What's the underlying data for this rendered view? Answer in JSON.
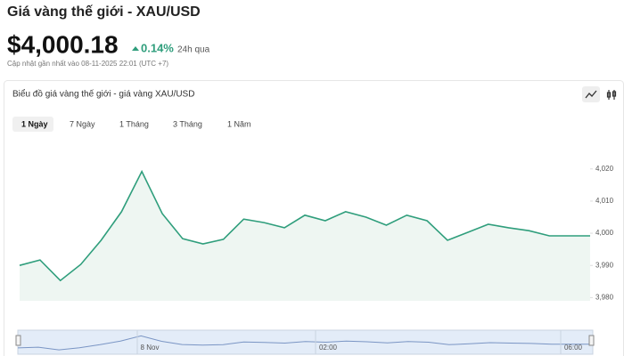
{
  "header": {
    "title": "Giá vàng thế giới - XAU/USD",
    "price": "$4,000.18",
    "change": "0.14%",
    "period": "24h qua",
    "updated": "Cập nhật gần nhất vào 08-11-2025 22:01 (UTC +7)"
  },
  "tabs": [
    "1 Ngày",
    "7 Ngày",
    "1 Tháng",
    "3 Tháng",
    "1 Năm"
  ],
  "navigator": {
    "labels": [
      "8 Nov",
      "02:00",
      "06:00"
    ]
  },
  "chart_data": {
    "type": "area",
    "title": "Biểu đồ giá vàng thế giới - giá vàng XAU/USD",
    "categories": [
      null,
      null,
      null,
      null,
      null,
      null,
      null,
      null,
      null,
      null,
      null,
      null,
      null,
      null,
      null,
      null,
      null,
      null,
      null,
      null,
      null,
      null,
      null,
      null,
      null,
      null,
      null,
      null,
      null
    ],
    "values": [
      3990,
      3991.7,
      3985.3,
      3990.3,
      3997.8,
      4006.7,
      4019.2,
      4006.1,
      3998.3,
      3996.7,
      3998.1,
      4004.4,
      4003.3,
      4001.7,
      4005.6,
      4003.9,
      4006.7,
      4005,
      4002.5,
      4005.6,
      4003.9,
      3997.8,
      4000.3,
      4002.8,
      4001.7,
      4000.8,
      3999.2,
      3999.2,
      3999.2
    ],
    "color": "#2f9e7c",
    "ylim": [
      3979,
      4031
    ],
    "yticks": [
      {
        "value": 3980,
        "label": "3,980"
      },
      {
        "value": 3990,
        "label": "3,990"
      },
      {
        "value": 4000,
        "label": "4,000"
      },
      {
        "value": 4010,
        "label": "4,010"
      },
      {
        "value": 4020,
        "label": "4,020"
      }
    ]
  }
}
